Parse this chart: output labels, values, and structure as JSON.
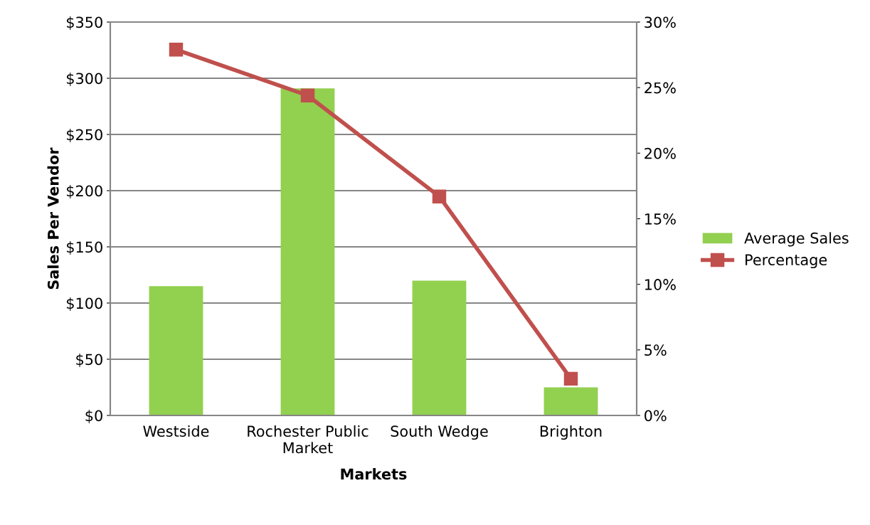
{
  "chart_data": {
    "type": "bar",
    "xlabel": "Markets",
    "ylabel": "Sales Per Vendor",
    "categories": [
      "Westside",
      "Rochester Public\nMarket",
      "South Wedge",
      "Brighton"
    ],
    "series": [
      {
        "name": "Average Sales",
        "color": "#92d050",
        "values": [
          115,
          291,
          120,
          25
        ]
      },
      {
        "name": "Percentage",
        "type": "line",
        "axis": "y2",
        "color": "#c0504d",
        "marker": "square",
        "values": [
          27.9,
          24.4,
          16.7,
          2.8
        ]
      }
    ],
    "ylim": [
      0,
      350
    ],
    "yticks": [
      {
        "value": 0,
        "label": "$0"
      },
      {
        "value": 50,
        "label": "$50"
      },
      {
        "value": 100,
        "label": "$100"
      },
      {
        "value": 150,
        "label": "$150"
      },
      {
        "value": 200,
        "label": "$200"
      },
      {
        "value": 250,
        "label": "$250"
      },
      {
        "value": 300,
        "label": "$300"
      },
      {
        "value": 350,
        "label": "$350"
      }
    ],
    "y2lim": [
      0,
      30
    ],
    "y2ticks": [
      {
        "value": 0,
        "label": "0%"
      },
      {
        "value": 5,
        "label": "5%"
      },
      {
        "value": 10,
        "label": "10%"
      },
      {
        "value": 15,
        "label": "15%"
      },
      {
        "value": 20,
        "label": "20%"
      },
      {
        "value": 25,
        "label": "25%"
      },
      {
        "value": 30,
        "label": "30%"
      }
    ],
    "grid": "y",
    "legend": "right"
  }
}
